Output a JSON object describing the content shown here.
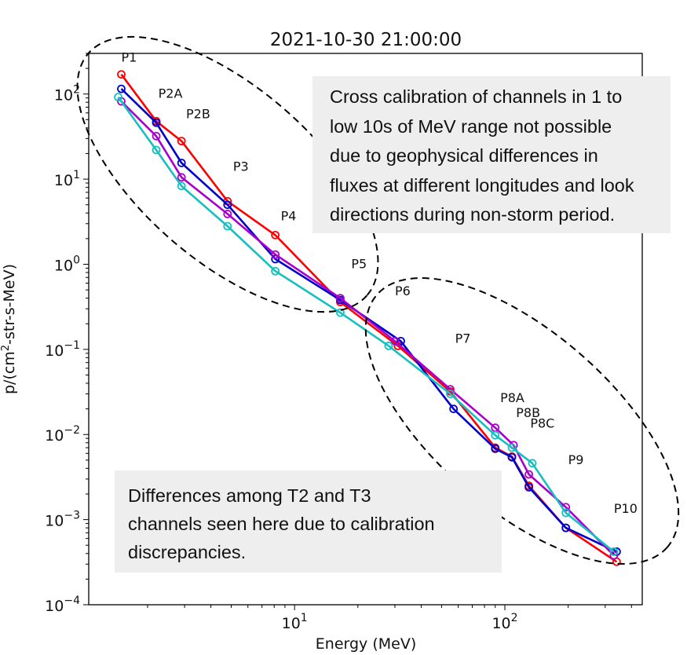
{
  "chart_data": {
    "type": "line",
    "title": "2021-10-30 21:00:00",
    "xlabel": "Energy (MeV)",
    "ylabel": "p/(cm²-str-s-MeV)",
    "xscale": "log",
    "yscale": "log",
    "xlim": [
      1.05,
      450
    ],
    "ylim": [
      0.0001,
      300
    ],
    "x_ticks": [
      {
        "value": 10,
        "base": "10",
        "exp": "1"
      },
      {
        "value": 100,
        "base": "10",
        "exp": "2"
      }
    ],
    "y_ticks": [
      {
        "value": 0.0001,
        "base": "10",
        "exp": "−4"
      },
      {
        "value": 0.001,
        "base": "10",
        "exp": "−3"
      },
      {
        "value": 0.01,
        "base": "10",
        "exp": "−2"
      },
      {
        "value": 0.1,
        "base": "10",
        "exp": "−1"
      },
      {
        "value": 1,
        "base": "10",
        "exp": "0"
      },
      {
        "value": 10,
        "base": "10",
        "exp": "1"
      },
      {
        "value": 100,
        "base": "10",
        "exp": "2"
      }
    ],
    "grid": false,
    "series": [
      {
        "color": "#ff0000",
        "x": [
          1.5,
          2.2,
          2.9,
          4.8,
          8.1,
          16.5,
          31,
          55,
          90,
          108,
          130,
          195,
          340
        ],
        "y": [
          170,
          48,
          28,
          5.5,
          2.2,
          0.36,
          0.11,
          0.032,
          0.007,
          0.0055,
          0.0025,
          0.0008,
          0.00032
        ]
      },
      {
        "color": "#0000cc",
        "x": [
          1.5,
          2.2,
          2.9,
          4.8,
          8.1,
          16.5,
          32,
          57,
          90,
          108,
          130,
          195,
          340
        ],
        "y": [
          115,
          46,
          15.5,
          5.0,
          1.15,
          0.38,
          0.125,
          0.02,
          0.0068,
          0.0054,
          0.0024,
          0.0008,
          0.00042
        ]
      },
      {
        "color": "#aa00cc",
        "x": [
          1.5,
          2.2,
          2.9,
          4.8,
          8.1,
          16.5,
          30,
          55,
          90,
          110,
          130,
          195,
          330
        ],
        "y": [
          82,
          32,
          10.5,
          3.9,
          1.3,
          0.4,
          0.125,
          0.034,
          0.012,
          0.0075,
          0.0034,
          0.0014,
          0.00038
        ]
      },
      {
        "color": "#17c0c0",
        "x": [
          1.45,
          2.2,
          2.9,
          4.8,
          8.1,
          16.5,
          28,
          55,
          90,
          108,
          135,
          195,
          330
        ],
        "y": [
          92,
          22,
          8.3,
          2.8,
          0.83,
          0.27,
          0.11,
          0.03,
          0.0098,
          0.007,
          0.0046,
          0.0012,
          0.00042
        ]
      }
    ],
    "point_labels": [
      {
        "text": "P1",
        "x": 1.5,
        "y": 240
      },
      {
        "text": "P2A",
        "x": 2.25,
        "y": 90
      },
      {
        "text": "P2B",
        "x": 3.05,
        "y": 52
      },
      {
        "text": "P3",
        "x": 5.1,
        "y": 12.5
      },
      {
        "text": "P4",
        "x": 8.6,
        "y": 3.3
      },
      {
        "text": "P5",
        "x": 18.6,
        "y": 0.9
      },
      {
        "text": "P6",
        "x": 30,
        "y": 0.43
      },
      {
        "text": "P7",
        "x": 58,
        "y": 0.12
      },
      {
        "text": "P8A",
        "x": 95,
        "y": 0.024
      },
      {
        "text": "P8B",
        "x": 113,
        "y": 0.016
      },
      {
        "text": "P8C",
        "x": 132,
        "y": 0.012
      },
      {
        "text": "P9",
        "x": 200,
        "y": 0.0045
      },
      {
        "text": "P10",
        "x": 330,
        "y": 0.0012
      }
    ]
  },
  "annotations": {
    "top_box_lines": [
      "Cross calibration of channels in 1 to",
      "low 10s of MeV range not possible",
      "due to geophysical differences in",
      "fluxes at different longitudes and look",
      "directions during non-storm period."
    ],
    "bottom_box_lines": [
      "Differences among T2 and T3",
      "channels seen here due to calibration",
      "discrepancies."
    ]
  }
}
